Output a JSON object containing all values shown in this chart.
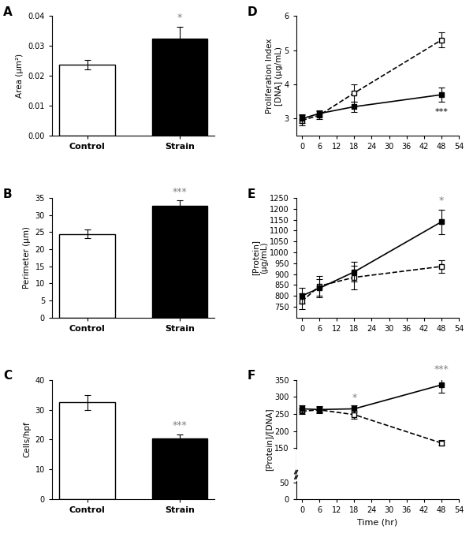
{
  "A": {
    "categories": [
      "Control",
      "Strain"
    ],
    "values": [
      0.0238,
      0.0325
    ],
    "errors": [
      0.0015,
      0.004
    ],
    "colors": [
      "white",
      "black"
    ],
    "ylabel": "Area (μm²)",
    "ylim": [
      0,
      0.04
    ],
    "yticks": [
      0.0,
      0.01,
      0.02,
      0.03,
      0.04
    ],
    "sig": {
      "bar": 1,
      "text": "*"
    }
  },
  "B": {
    "categories": [
      "Control",
      "Strain"
    ],
    "values": [
      24.5,
      32.8
    ],
    "errors": [
      1.2,
      1.5
    ],
    "colors": [
      "white",
      "black"
    ],
    "ylabel": "Perimeter (μm)",
    "ylim": [
      0,
      35
    ],
    "yticks": [
      0,
      5,
      10,
      15,
      20,
      25,
      30,
      35
    ],
    "sig": {
      "bar": 1,
      "text": "***"
    }
  },
  "C": {
    "categories": [
      "Control",
      "Strain"
    ],
    "values": [
      32.5,
      20.5
    ],
    "errors": [
      2.5,
      1.2
    ],
    "colors": [
      "white",
      "black"
    ],
    "ylabel": "Cells/hpf",
    "ylim": [
      0,
      40
    ],
    "yticks": [
      0,
      10,
      20,
      30,
      40
    ],
    "sig": {
      "bar": 1,
      "text": "***"
    }
  },
  "D": {
    "times": [
      0,
      6,
      18,
      48
    ],
    "control_values": [
      2.95,
      3.1,
      3.75,
      5.3
    ],
    "control_errors": [
      0.15,
      0.12,
      0.25,
      0.22
    ],
    "strain_values": [
      3.0,
      3.15,
      3.35,
      3.7
    ],
    "strain_errors": [
      0.12,
      0.1,
      0.15,
      0.2
    ],
    "ylabel": "Proliferation Index\n[DNA] (μg/mL)",
    "xlabel": "",
    "ylim": [
      2.5,
      6.0
    ],
    "yticks": [
      3,
      4,
      5,
      6
    ],
    "xticks": [
      0,
      6,
      12,
      18,
      24,
      30,
      36,
      42,
      48,
      54
    ],
    "sig_time": 48,
    "sig_text": "***"
  },
  "E": {
    "times": [
      0,
      6,
      18,
      48
    ],
    "strain_values": [
      800,
      835,
      910,
      1140
    ],
    "strain_errors": [
      35,
      40,
      45,
      55
    ],
    "control_values": [
      775,
      845,
      885,
      935
    ],
    "control_errors": [
      35,
      45,
      55,
      30
    ],
    "ylabel": "[Protein]\n(μg/mL)",
    "xlabel": "",
    "ylim": [
      700,
      1250
    ],
    "yticks": [
      750,
      800,
      850,
      900,
      950,
      1000,
      1050,
      1100,
      1150,
      1200,
      1250
    ],
    "xticks": [
      0,
      6,
      12,
      18,
      24,
      30,
      36,
      42,
      48,
      54
    ],
    "sig_time": 48,
    "sig_text": "*"
  },
  "F": {
    "times": [
      0,
      6,
      18,
      48
    ],
    "strain_values": [
      265,
      263,
      265,
      335
    ],
    "strain_errors": [
      10,
      8,
      10,
      22
    ],
    "control_values": [
      258,
      262,
      248,
      165
    ],
    "control_errors": [
      8,
      10,
      12,
      8
    ],
    "ylabel": "[Protein]/[DNA]",
    "xlabel": "Time (hr)",
    "ylim": [
      0,
      350
    ],
    "yticks": [
      0,
      50,
      150,
      200,
      250,
      300,
      350
    ],
    "ytick_labels": [
      "0",
      "50",
      "150",
      "200",
      "250",
      "300",
      "350"
    ],
    "xticks": [
      0,
      6,
      12,
      18,
      24,
      30,
      36,
      42,
      48,
      54
    ],
    "sig_time_star": 18,
    "sig_text_star": "*",
    "sig_time_triple": 48,
    "sig_text_triple": "***"
  }
}
